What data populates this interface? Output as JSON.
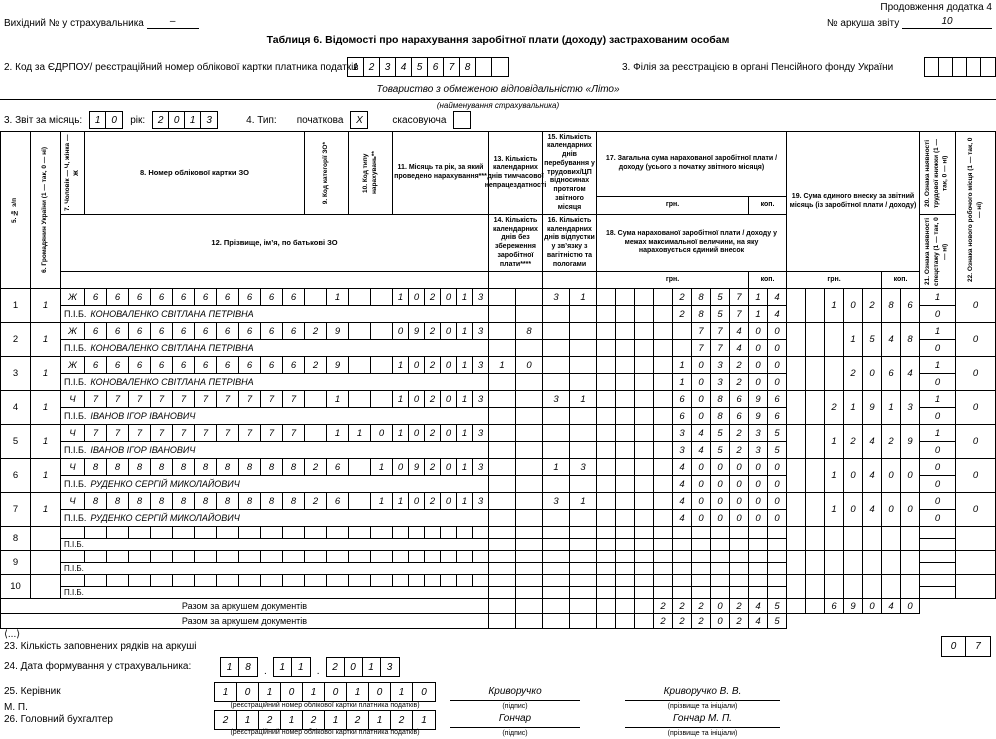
{
  "meta": {
    "continuation": "Продовження додатка 4",
    "outgoing_label": "Вихідний № у страхувальника",
    "outgoing_value": "–",
    "sheet_label": "№ аркуша звіту",
    "sheet_value": "10",
    "title": "Таблиця 6. Відомості про нарахування заробітної плати (доходу) застрахованим особам"
  },
  "fields": {
    "edrpou_label": "2. Код за ЄДРПОУ/ реєстраційний номер облікової картки платника податків",
    "edrpou": [
      "1",
      "2",
      "3",
      "4",
      "5",
      "6",
      "7",
      "8",
      "",
      ""
    ],
    "filia_label": "3. Філія за реєстрацією в органі Пенсійного фонду України",
    "filia": [
      "",
      "",
      "",
      "",
      ""
    ],
    "insurer_name": "Товариство з обмеженою відповідальністю «Літо»",
    "insurer_caption": "(найменування страхувальника)",
    "month_label": "3. Звіт за місяць:",
    "month": [
      "1",
      "0"
    ],
    "year_label": "рік:",
    "year": [
      "2",
      "0",
      "1",
      "3"
    ],
    "type_label": "4. Тип:",
    "initial_label": "початкова",
    "initial_mark": [
      "X"
    ],
    "cancel_label": "скасовуюча",
    "cancel_mark": [
      ""
    ]
  },
  "table": {
    "pib_label": "П.І.Б.",
    "columns": {
      "c5": "5. № з/п",
      "c6": "6. Громадянин України (1 — так, 0 — ні)",
      "c7": "7. Чоловік — Ч, жінка — Ж",
      "c8": "8. Номер облікової картки ЗО",
      "c9": "9. Код категорії ЗО*",
      "c10": "10. Код типу нарахувань**",
      "c11": "11. Місяць та рік, за який проведено нарахування***",
      "c12": "12. Прізвище, ім’я, по батькові ЗО",
      "c13": "13. Кількість календарних днів тимчасової непрацездатності",
      "c14": "14. Кількість календарних днів без збереження заробітної плати****",
      "c15": "15. Кількість календарних днів перебування у трудових/ЦП відносинах протягом звітного місяця",
      "c16": "16. Кількість календарних днів відпустки у зв’язку з вагітністю та пологами",
      "c17": "17. Загальна сума нарахованої заробітної плати / доходу (усього з початку звітного місяця)",
      "c18": "18. Сума нарахованої заробітної плати / доходу у межах максимальної величини, на яку нараховується єдиний внесок",
      "c19": "19. Сума єдиного внеску за звітний місяць (із заробітної плати / доходу)",
      "c20": "20. Ознака наявності трудової книжки (1 — так, 0 — ні)",
      "c21": "21. Ознака наявності спецстажу (1 — так, 0 — ні)",
      "c22": "22. Ознака нового робочого місця (1 — так, 0 — ні)",
      "hrn": "грн.",
      "kop": "коп."
    },
    "rows": [
      {
        "n": "1",
        "cit": "1",
        "sex": "Ж",
        "card": "6666666666",
        "cat": "1",
        "typ": "",
        "my": "102013",
        "d13": "",
        "d15": "31",
        "h17": "2857",
        "k17": "14",
        "h18": "2857",
        "k18": "14",
        "name": "КОНОВАЛЕНКО СВІТЛАНА ПЕТРІВНА",
        "h19": "102",
        "k19": "86",
        "f20": "1",
        "f21": "0",
        "f22": "0"
      },
      {
        "n": "2",
        "cit": "1",
        "sex": "Ж",
        "card": "6666666666",
        "cat": "29",
        "typ": "",
        "my": "092013",
        "d13": "8",
        "d15": "",
        "h17": "774",
        "k17": "00",
        "h18": "774",
        "k18": "00",
        "name": "КОНОВАЛЕНКО СВІТЛАНА ПЕТРІВНА",
        "h19": "15",
        "k19": "48",
        "f20": "1",
        "f21": "0",
        "f22": "0"
      },
      {
        "n": "3",
        "cit": "1",
        "sex": "Ж",
        "card": "6666666666",
        "cat": "29",
        "typ": "",
        "my": "102013",
        "d13": "10",
        "d15": "",
        "h17": "1032",
        "k17": "00",
        "h18": "1032",
        "k18": "00",
        "name": "КОНОВАЛЕНКО СВІТЛАНА ПЕТРІВНА",
        "h19": "20",
        "k19": "64",
        "f20": "1",
        "f21": "0",
        "f22": "0"
      },
      {
        "n": "4",
        "cit": "1",
        "sex": "Ч",
        "card": "7777777777",
        "cat": "1",
        "typ": "",
        "my": "102013",
        "d13": "",
        "d15": "31",
        "h17": "6086",
        "k17": "96",
        "h18": "6086",
        "k18": "96",
        "name": "ІВАНОВ ІГОР ІВАНОВИЧ",
        "h19": "219",
        "k19": "13",
        "f20": "1",
        "f21": "0",
        "f22": "0"
      },
      {
        "n": "5",
        "cit": "1",
        "sex": "Ч",
        "card": "7777777777",
        "cat": "1",
        "typ": "10",
        "my": "102013",
        "d13": "",
        "d15": "",
        "h17": "3452",
        "k17": "35",
        "h18": "3452",
        "k18": "35",
        "name": "ІВАНОВ ІГОР ІВАНОВИЧ",
        "h19": "124",
        "k19": "29",
        "f20": "1",
        "f21": "0",
        "f22": "0"
      },
      {
        "n": "6",
        "cit": "1",
        "sex": "Ч",
        "card": "8888888888",
        "cat": "26",
        "typ": "1",
        "my": "092013",
        "d13": "",
        "d15": "13",
        "h17": "4000",
        "k17": "00",
        "h18": "4000",
        "k18": "00",
        "name": "РУДЕНКО СЕРГІЙ МИКОЛАЙОВИЧ",
        "h19": "104",
        "k19": "00",
        "f20": "0",
        "f21": "0",
        "f22": "0"
      },
      {
        "n": "7",
        "cit": "1",
        "sex": "Ч",
        "card": "8888888888",
        "cat": "26",
        "typ": "1",
        "my": "102013",
        "d13": "",
        "d15": "31",
        "h17": "4000",
        "k17": "00",
        "h18": "4000",
        "k18": "00",
        "name": "РУДЕНКО СЕРГІЙ МИКОЛАЙОВИЧ",
        "h19": "104",
        "k19": "00",
        "f20": "0",
        "f21": "0",
        "f22": "0"
      },
      {
        "n": "8",
        "cit": "",
        "sex": "",
        "card": "",
        "cat": "",
        "typ": "",
        "my": "",
        "d13": "",
        "d15": "",
        "h17": "",
        "k17": "",
        "h18": "",
        "k18": "",
        "name": "",
        "h19": "",
        "k19": "",
        "f20": "",
        "f21": "",
        "f22": ""
      },
      {
        "n": "9",
        "cit": "",
        "sex": "",
        "card": "",
        "cat": "",
        "typ": "",
        "my": "",
        "d13": "",
        "d15": "",
        "h17": "",
        "k17": "",
        "h18": "",
        "k18": "",
        "name": "",
        "h19": "",
        "k19": "",
        "f20": "",
        "f21": "",
        "f22": ""
      },
      {
        "n": "10",
        "cit": "",
        "sex": "",
        "card": "",
        "cat": "",
        "typ": "",
        "my": "",
        "d13": "",
        "d15": "",
        "h17": "",
        "k17": "",
        "h18": "",
        "k18": "",
        "name": "",
        "h19": "",
        "k19": "",
        "f20": "",
        "f21": "",
        "f22": ""
      }
    ],
    "totals": [
      {
        "label": "Разом за аркушем документів",
        "hrn": "22202",
        "kop": "45",
        "h19": "690",
        "k19": "40",
        "has19": true
      },
      {
        "label": "Разом за аркушем документів",
        "hrn": "22202",
        "kop": "45",
        "h19": "",
        "k19": "",
        "has19": false
      }
    ]
  },
  "footer": {
    "ellipsis": "⟨...⟩",
    "line23_label": "23. Кількість заповнених рядків на аркуші",
    "line23_boxes": [
      "0",
      "7"
    ],
    "line24_label": "24. Дата формування у страхувальника:",
    "date_day": [
      "1",
      "8"
    ],
    "date_month": [
      "1",
      "1"
    ],
    "date_year": [
      "2",
      "0",
      "1",
      "3"
    ],
    "dot": ".",
    "line25_label": "25. Керівник",
    "mp_label": "М. П.",
    "head_code": [
      "1",
      "0",
      "1",
      "0",
      "1",
      "0",
      "1",
      "0",
      "1",
      "0"
    ],
    "code_caption": "(реєстраційний номер облікової картки платника податків)",
    "head_sign": "Криворучко",
    "sign_caption": "(підпис)",
    "head_name": "Криворучко В. В.",
    "name_caption": "(прізвище та ініціали)",
    "line26_label": "26. Головний бухгалтер",
    "acc_code": [
      "2",
      "1",
      "2",
      "1",
      "2",
      "1",
      "2",
      "1",
      "2",
      "1"
    ],
    "acc_sign": "Гончар",
    "acc_name": "Гончар М. П."
  }
}
